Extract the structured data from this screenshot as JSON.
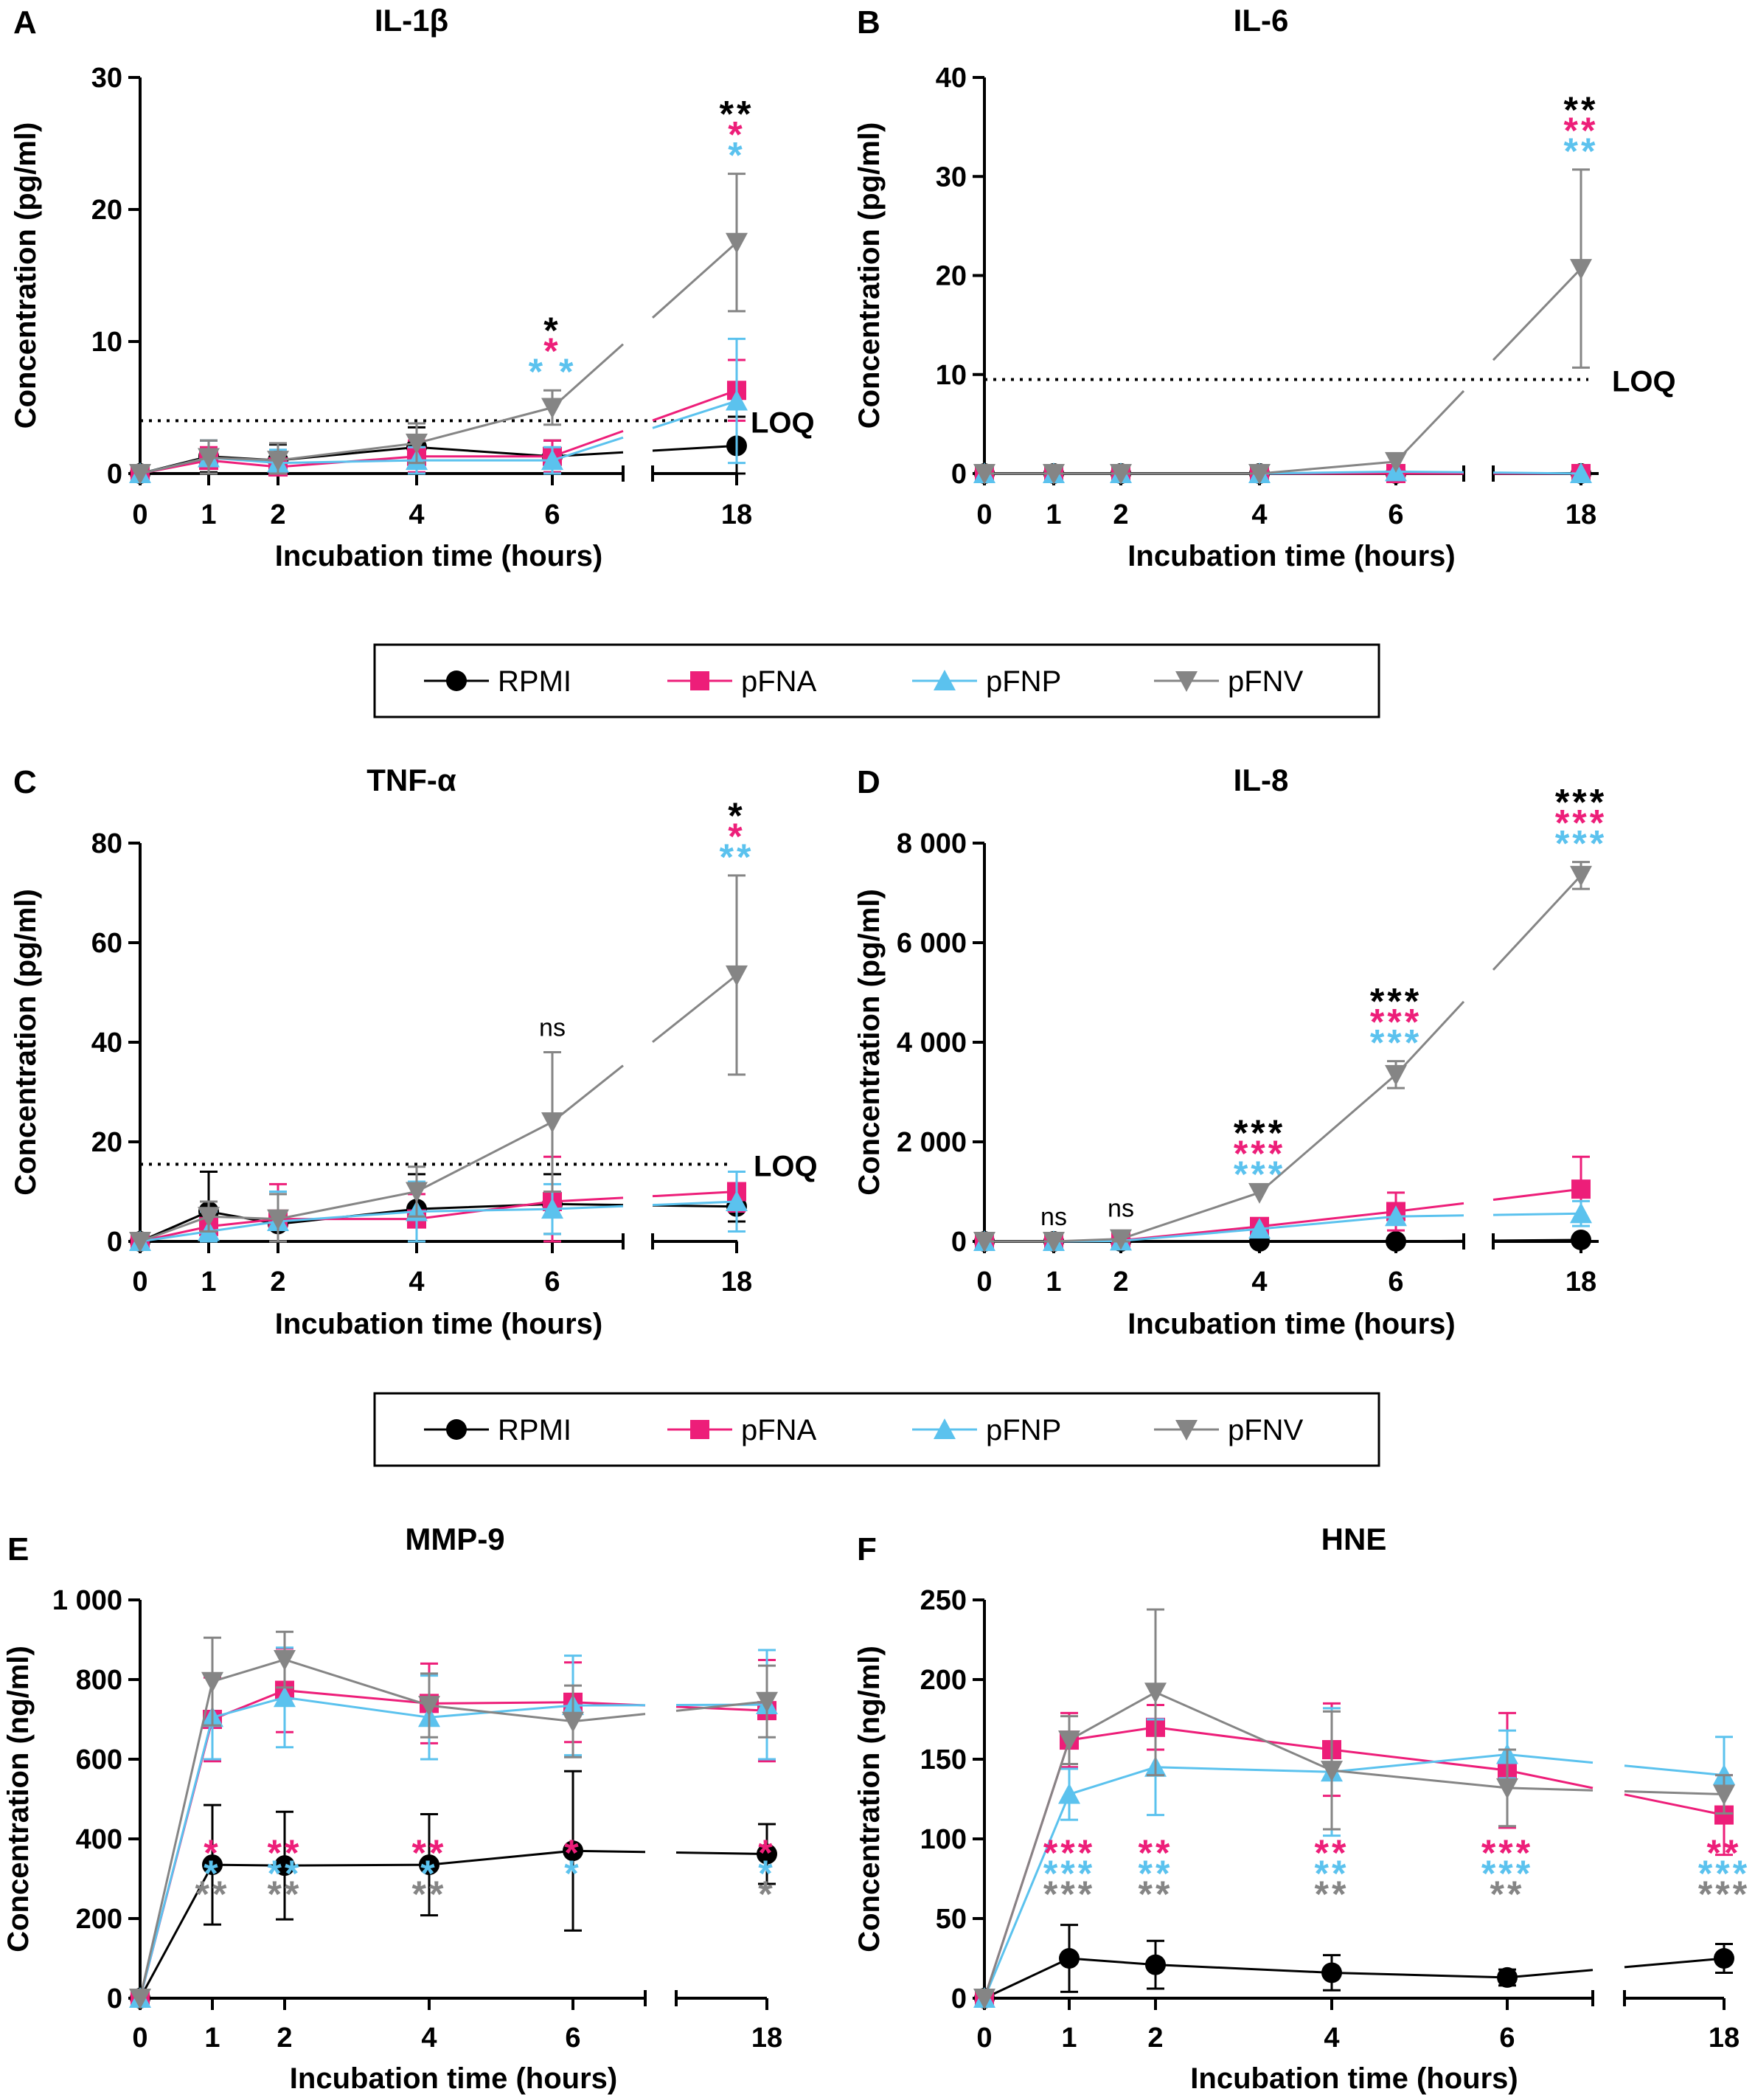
{
  "colors": {
    "RPMI": "#000000",
    "pFNA": "#ed1e79",
    "pFNP": "#5bc2ee",
    "pFNV": "#858585"
  },
  "legend_labels": [
    "RPMI",
    "pFNA",
    "pFNP",
    "pFNV"
  ],
  "chart_data": [
    {
      "type": "line",
      "panel": "A",
      "title": "IL-1β",
      "xlabel": "Incubation time (hours)",
      "ylabel": "Concentration (pg/ml)",
      "x": [
        0,
        1,
        2,
        4,
        6,
        18
      ],
      "x_tick_labels": [
        "0",
        "1",
        "2",
        "4",
        "6",
        "18"
      ],
      "y_ticks": [
        0,
        10,
        20,
        30
      ],
      "y_tick_labels": [
        "0",
        "10",
        "20",
        "30"
      ],
      "ylim": [
        0,
        30
      ],
      "loq": 4,
      "loq_label": "LOQ",
      "series": [
        {
          "name": "RPMI",
          "values": [
            0,
            1.3,
            1.0,
            2.0,
            1.3,
            2.1
          ],
          "err": [
            0,
            1.2,
            1.2,
            1.5,
            1.2,
            2.2
          ]
        },
        {
          "name": "pFNA",
          "values": [
            0,
            1.0,
            0.5,
            1.3,
            1.3,
            6.3
          ],
          "err": [
            0,
            1.0,
            0.5,
            1.2,
            1.2,
            2.3
          ]
        },
        {
          "name": "pFNP",
          "values": [
            0,
            1.2,
            0.8,
            1.0,
            1.0,
            5.5
          ],
          "err": [
            0,
            1.3,
            1.0,
            1.0,
            1.0,
            4.7
          ]
        },
        {
          "name": "pFNV",
          "values": [
            0,
            1.2,
            1.0,
            2.3,
            5.0,
            17.5
          ],
          "err": [
            0,
            1.3,
            1.3,
            1.5,
            1.3,
            5.2
          ]
        }
      ],
      "annotations": [
        {
          "x": 6,
          "rows": [
            {
              "text": "*",
              "series": "RPMI"
            },
            {
              "text": "*",
              "series": "pFNA"
            },
            {
              "text": "* *",
              "series": "pFNP"
            }
          ]
        },
        {
          "x": 18,
          "rows": [
            {
              "text": "**",
              "series": "RPMI"
            },
            {
              "text": "*",
              "series": "pFNA"
            },
            {
              "text": "*",
              "series": "pFNP"
            }
          ]
        }
      ]
    },
    {
      "type": "line",
      "panel": "B",
      "title": "IL-6",
      "xlabel": "Incubation time (hours)",
      "ylabel": "Concentration (pg/ml)",
      "x": [
        0,
        1,
        2,
        4,
        6,
        18
      ],
      "x_tick_labels": [
        "0",
        "1",
        "2",
        "4",
        "6",
        "18"
      ],
      "y_ticks": [
        0,
        10,
        20,
        30,
        40
      ],
      "y_tick_labels": [
        "0",
        "10",
        "20",
        "30",
        "40"
      ],
      "ylim": [
        0,
        40
      ],
      "loq": 9.5,
      "loq_label": "LOQ",
      "series": [
        {
          "name": "RPMI",
          "values": [
            0,
            0,
            0,
            0,
            0,
            0
          ],
          "err": [
            0,
            0,
            0,
            0,
            0,
            0
          ]
        },
        {
          "name": "pFNA",
          "values": [
            0,
            0,
            0,
            0,
            0,
            0
          ],
          "err": [
            0,
            0,
            0,
            0,
            0,
            0
          ]
        },
        {
          "name": "pFNP",
          "values": [
            0,
            0,
            0,
            0,
            0.2,
            0
          ],
          "err": [
            0,
            0,
            0,
            0,
            0,
            0
          ]
        },
        {
          "name": "pFNV",
          "values": [
            0,
            0,
            0,
            0,
            1.2,
            20.7
          ],
          "err": [
            0,
            0,
            0,
            0,
            0,
            10
          ]
        }
      ],
      "annotations": [
        {
          "x": 18,
          "rows": [
            {
              "text": "**",
              "series": "RPMI"
            },
            {
              "text": "**",
              "series": "pFNA"
            },
            {
              "text": "**",
              "series": "pFNP"
            }
          ]
        }
      ]
    },
    {
      "type": "line",
      "panel": "C",
      "title": "TNF-α",
      "xlabel": "Incubation time (hours)",
      "ylabel": "Concentration (pg/ml)",
      "x": [
        0,
        1,
        2,
        4,
        6,
        18
      ],
      "x_tick_labels": [
        "0",
        "1",
        "2",
        "4",
        "6",
        "18"
      ],
      "y_ticks": [
        0,
        20,
        40,
        60,
        80
      ],
      "y_tick_labels": [
        "0",
        "20",
        "40",
        "60",
        "80"
      ],
      "ylim": [
        0,
        80
      ],
      "loq": 15.5,
      "loq_label": "LOQ",
      "series": [
        {
          "name": "RPMI",
          "values": [
            0,
            6,
            3.5,
            6.5,
            7.5,
            7
          ],
          "err": [
            0,
            8,
            1,
            7,
            6,
            3
          ]
        },
        {
          "name": "pFNA",
          "values": [
            0,
            3,
            4.5,
            4.5,
            8,
            10
          ],
          "err": [
            0,
            5,
            7,
            5,
            9,
            4
          ]
        },
        {
          "name": "pFNP",
          "values": [
            0,
            2,
            4,
            6,
            6.5,
            8
          ],
          "err": [
            0,
            4,
            6,
            6,
            5,
            6
          ]
        },
        {
          "name": "pFNV",
          "values": [
            0,
            5,
            4.5,
            10,
            24,
            53.5
          ],
          "err": [
            0,
            3,
            5,
            5,
            14,
            20
          ]
        }
      ],
      "annotations": [
        {
          "x": 6,
          "rows": [
            {
              "text": "ns",
              "series": "RPMI",
              "plain": true
            }
          ]
        },
        {
          "x": 18,
          "rows": [
            {
              "text": "*",
              "series": "RPMI"
            },
            {
              "text": "*",
              "series": "pFNA"
            },
            {
              "text": "**",
              "series": "pFNP"
            }
          ]
        }
      ]
    },
    {
      "type": "line",
      "panel": "D",
      "title": "IL-8",
      "xlabel": "Incubation time (hours)",
      "ylabel": "Concentration (pg/ml)",
      "x": [
        0,
        1,
        2,
        4,
        6,
        18
      ],
      "x_tick_labels": [
        "0",
        "1",
        "2",
        "4",
        "6",
        "18"
      ],
      "y_ticks": [
        0,
        2000,
        4000,
        6000,
        8000
      ],
      "y_tick_labels": [
        "0",
        "2 000",
        "4 000",
        "6 000",
        "8 000"
      ],
      "ylim": [
        0,
        8000
      ],
      "series": [
        {
          "name": "RPMI",
          "values": [
            0,
            0,
            0,
            0,
            0,
            30
          ],
          "err": [
            0,
            0,
            0,
            0,
            0,
            0
          ]
        },
        {
          "name": "pFNA",
          "values": [
            0,
            0,
            20,
            300,
            600,
            1050
          ],
          "err": [
            0,
            0,
            0,
            0,
            380,
            650
          ]
        },
        {
          "name": "pFNP",
          "values": [
            0,
            0,
            10,
            250,
            500,
            560
          ],
          "err": [
            0,
            0,
            0,
            0,
            0,
            250
          ]
        },
        {
          "name": "pFNV",
          "values": [
            0,
            0,
            50,
            980,
            3350,
            7350
          ],
          "err": [
            0,
            0,
            120,
            0,
            270,
            270
          ]
        }
      ],
      "annotations": [
        {
          "x": 1,
          "rows": [
            {
              "text": "ns",
              "series": "RPMI",
              "plain": true
            }
          ]
        },
        {
          "x": 2,
          "rows": [
            {
              "text": "ns",
              "series": "RPMI",
              "plain": true
            }
          ]
        },
        {
          "x": 4,
          "rows": [
            {
              "text": "***",
              "series": "RPMI"
            },
            {
              "text": "***",
              "series": "pFNA"
            },
            {
              "text": "***",
              "series": "pFNP"
            }
          ]
        },
        {
          "x": 6,
          "rows": [
            {
              "text": "***",
              "series": "RPMI"
            },
            {
              "text": "***",
              "series": "pFNA"
            },
            {
              "text": "***",
              "series": "pFNP"
            }
          ]
        },
        {
          "x": 18,
          "rows": [
            {
              "text": "***",
              "series": "RPMI"
            },
            {
              "text": "***",
              "series": "pFNA"
            },
            {
              "text": "***",
              "series": "pFNP"
            }
          ]
        }
      ]
    },
    {
      "type": "line",
      "panel": "E",
      "title": "MMP-9",
      "xlabel": "Incubation time (hours)",
      "ylabel": "Concentration (ng/ml)",
      "x": [
        0,
        1,
        2,
        4,
        6,
        18
      ],
      "x_tick_labels": [
        "0",
        "1",
        "2",
        "4",
        "6",
        "18"
      ],
      "y_ticks": [
        0,
        200,
        400,
        600,
        800,
        1000
      ],
      "y_tick_labels": [
        "0",
        "200",
        "400",
        "600",
        "800",
        "1 000"
      ],
      "ylim": [
        0,
        1000
      ],
      "series": [
        {
          "name": "RPMI",
          "values": [
            0,
            335,
            333,
            335,
            370,
            362
          ],
          "err": [
            0,
            150,
            135,
            127,
            200,
            75
          ]
        },
        {
          "name": "pFNA",
          "values": [
            0,
            700,
            773,
            740,
            743,
            722
          ],
          "err": [
            0,
            105,
            105,
            100,
            100,
            127
          ]
        },
        {
          "name": "pFNP",
          "values": [
            0,
            705,
            755,
            705,
            735,
            737
          ],
          "err": [
            0,
            105,
            125,
            105,
            125,
            137
          ]
        },
        {
          "name": "pFNV",
          "values": [
            0,
            795,
            850,
            735,
            695,
            745
          ],
          "err": [
            0,
            110,
            70,
            80,
            90,
            90
          ]
        }
      ],
      "annotations": [
        {
          "x": 1,
          "rows": [
            {
              "text": "*",
              "series": "pFNA"
            },
            {
              "text": "*",
              "series": "pFNP"
            },
            {
              "text": "**",
              "series": "pFNV"
            }
          ]
        },
        {
          "x": 2,
          "rows": [
            {
              "text": "**",
              "series": "pFNA"
            },
            {
              "text": "**",
              "series": "pFNP"
            },
            {
              "text": "**",
              "series": "pFNV"
            }
          ]
        },
        {
          "x": 4,
          "rows": [
            {
              "text": "**",
              "series": "pFNA"
            },
            {
              "text": "*",
              "series": "pFNP"
            },
            {
              "text": "**",
              "series": "pFNV"
            }
          ]
        },
        {
          "x": 6,
          "rows": [
            {
              "text": "*",
              "series": "pFNA"
            },
            {
              "text": "*",
              "series": "pFNP"
            }
          ]
        },
        {
          "x": 18,
          "rows": [
            {
              "text": "*",
              "series": "pFNA"
            },
            {
              "text": "*",
              "series": "pFNP"
            },
            {
              "text": "*",
              "series": "pFNV"
            }
          ]
        }
      ]
    },
    {
      "type": "line",
      "panel": "F",
      "title": "HNE",
      "xlabel": "Incubation time (hours)",
      "ylabel": "Concentration (ng/ml)",
      "x": [
        0,
        1,
        2,
        4,
        6,
        18
      ],
      "x_tick_labels": [
        "0",
        "1",
        "2",
        "4",
        "6",
        "18"
      ],
      "y_ticks": [
        0,
        50,
        100,
        150,
        200,
        250
      ],
      "y_tick_labels": [
        "0",
        "50",
        "100",
        "150",
        "200",
        "250"
      ],
      "ylim": [
        0,
        250
      ],
      "series": [
        {
          "name": "RPMI",
          "values": [
            0,
            25,
            21,
            16,
            13,
            25
          ],
          "err": [
            0,
            21,
            15,
            11,
            5,
            9
          ]
        },
        {
          "name": "pFNA",
          "values": [
            0,
            162,
            170,
            156,
            143,
            115
          ],
          "err": [
            0,
            17,
            14,
            29,
            36,
            25
          ]
        },
        {
          "name": "pFNP",
          "values": [
            0,
            128,
            145,
            142,
            153,
            140
          ],
          "err": [
            0,
            16,
            30,
            40,
            15,
            24
          ]
        },
        {
          "name": "pFNV",
          "values": [
            0,
            162,
            192,
            143,
            132,
            128
          ],
          "err": [
            0,
            15,
            52,
            37,
            24,
            12
          ]
        }
      ],
      "annotations": [
        {
          "x": 1,
          "rows": [
            {
              "text": "***",
              "series": "pFNA"
            },
            {
              "text": "***",
              "series": "pFNP"
            },
            {
              "text": "***",
              "series": "pFNV"
            }
          ]
        },
        {
          "x": 2,
          "rows": [
            {
              "text": "**",
              "series": "pFNA"
            },
            {
              "text": "**",
              "series": "pFNP"
            },
            {
              "text": "**",
              "series": "pFNV"
            }
          ]
        },
        {
          "x": 4,
          "rows": [
            {
              "text": "**",
              "series": "pFNA"
            },
            {
              "text": "**",
              "series": "pFNP"
            },
            {
              "text": "**",
              "series": "pFNV"
            }
          ]
        },
        {
          "x": 6,
          "rows": [
            {
              "text": "***",
              "series": "pFNA"
            },
            {
              "text": "***",
              "series": "pFNP"
            },
            {
              "text": "**",
              "series": "pFNV"
            }
          ]
        },
        {
          "x": 18,
          "rows": [
            {
              "text": "**",
              "series": "pFNA"
            },
            {
              "text": "***",
              "series": "pFNP"
            },
            {
              "text": "***",
              "series": "pFNV"
            }
          ]
        }
      ]
    }
  ]
}
